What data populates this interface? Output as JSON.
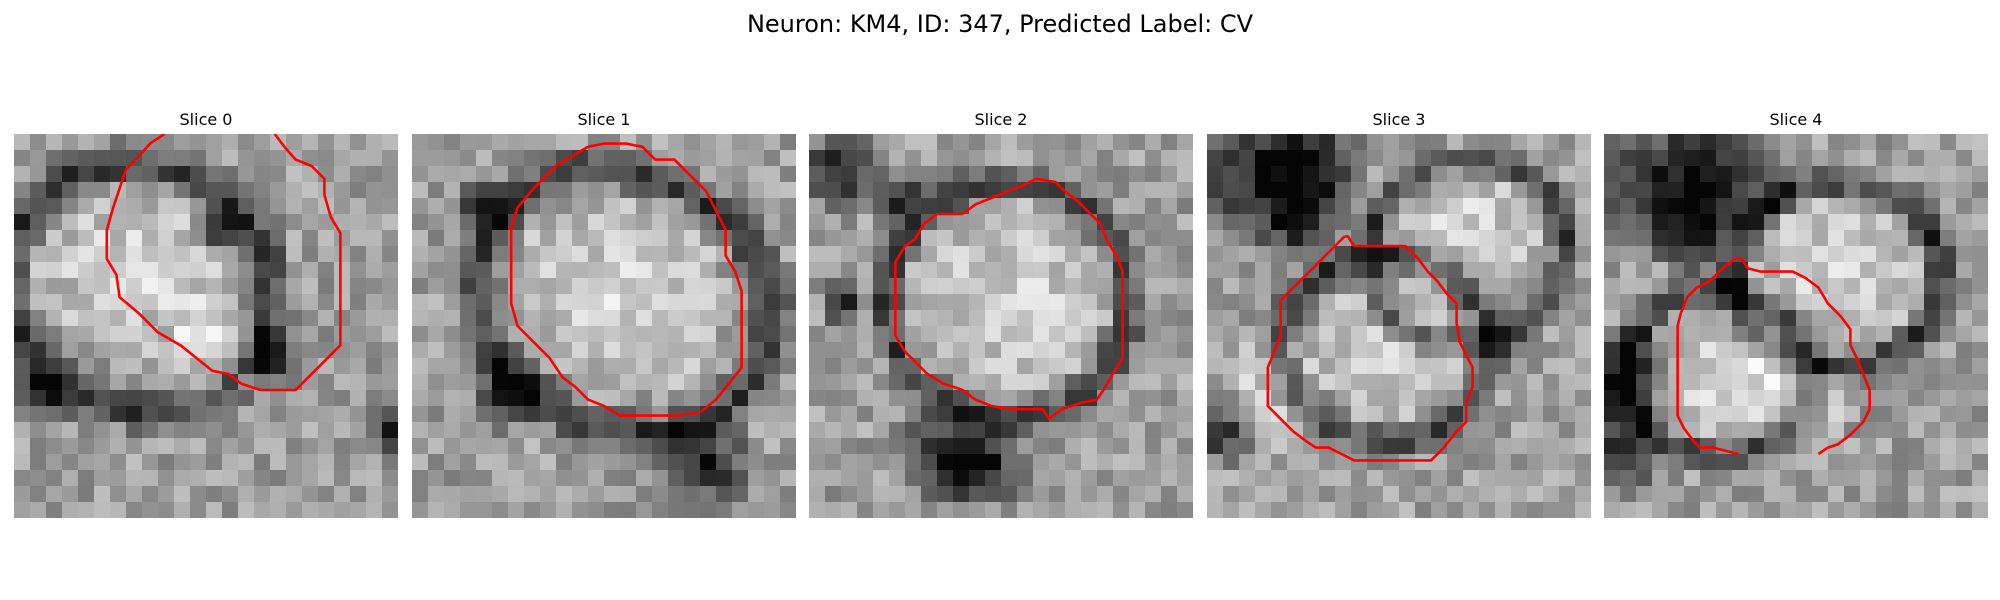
{
  "figure": {
    "title": "Neuron: KM4, ID: 347, Predicted Label: CV"
  },
  "panels": [
    {
      "title": "Slice 0",
      "contour": [
        [
          9.4,
          0
        ],
        [
          8.5,
          0.6
        ],
        [
          7.8,
          1.4
        ],
        [
          7.0,
          2.2
        ],
        [
          6.6,
          3.4
        ],
        [
          6.2,
          4.6
        ],
        [
          5.8,
          6.0
        ],
        [
          5.8,
          7.8
        ],
        [
          6.4,
          8.8
        ],
        [
          6.6,
          10.2
        ],
        [
          7.8,
          11.2
        ],
        [
          9.0,
          12.4
        ],
        [
          10.4,
          13.2
        ],
        [
          11.4,
          14.0
        ],
        [
          12.4,
          14.8
        ],
        [
          13.4,
          15.0
        ],
        [
          14.2,
          15.6
        ],
        [
          15.4,
          16.0
        ],
        [
          16.6,
          16.0
        ],
        [
          17.6,
          16.0
        ],
        [
          18.4,
          15.2
        ],
        [
          19.4,
          14.2
        ],
        [
          20.4,
          13.2
        ],
        [
          20.4,
          11.6
        ],
        [
          20.4,
          10.0
        ],
        [
          20.4,
          8.0
        ],
        [
          20.4,
          6.2
        ],
        [
          19.8,
          5.2
        ],
        [
          19.4,
          3.8
        ],
        [
          19.4,
          2.8
        ],
        [
          18.6,
          2.0
        ],
        [
          17.6,
          1.6
        ],
        [
          16.9,
          0.8
        ],
        [
          16.3,
          0
        ]
      ],
      "blobs": [
        {
          "cx": 7.6,
          "cy": 8.6,
          "rx": 6.4,
          "ry": 5.6,
          "rot": 20
        },
        {
          "cx": 12.5,
          "cy": 13.5,
          "rx": 3.0,
          "ry": 3.5,
          "rot": 0
        }
      ],
      "rings": [
        {
          "cx": 7.8,
          "cy": 9.6,
          "rx": 8.4,
          "ry": 7.6,
          "rot": 20,
          "w": 1.8
        }
      ],
      "darks": [
        {
          "cx": 16.2,
          "cy": 13.8,
          "r": 1.6
        },
        {
          "cx": 12.6,
          "cy": 6.2,
          "r": 1.2
        },
        {
          "cx": 1.6,
          "cy": 16.2,
          "r": 2.0
        },
        {
          "cx": 24.0,
          "cy": 18.5,
          "r": 1.8
        }
      ]
    },
    {
      "title": "Slice 1",
      "contour": [
        [
          9.0,
          2.0
        ],
        [
          10.0,
          1.4
        ],
        [
          11.0,
          0.8
        ],
        [
          12.0,
          0.6
        ],
        [
          13.4,
          0.6
        ],
        [
          14.4,
          0.8
        ],
        [
          15.2,
          1.6
        ],
        [
          16.4,
          1.6
        ],
        [
          17.4,
          2.6
        ],
        [
          18.4,
          3.6
        ],
        [
          19.0,
          4.8
        ],
        [
          19.6,
          6.0
        ],
        [
          19.6,
          7.6
        ],
        [
          20.2,
          8.6
        ],
        [
          20.6,
          9.8
        ],
        [
          20.6,
          11.4
        ],
        [
          20.6,
          13.0
        ],
        [
          20.6,
          14.6
        ],
        [
          19.8,
          15.6
        ],
        [
          19.0,
          16.6
        ],
        [
          18.0,
          17.4
        ],
        [
          16.6,
          17.6
        ],
        [
          15.0,
          17.6
        ],
        [
          13.0,
          17.6
        ],
        [
          12.0,
          17.0
        ],
        [
          11.0,
          16.6
        ],
        [
          10.2,
          15.8
        ],
        [
          9.4,
          15.2
        ],
        [
          8.6,
          14.0
        ],
        [
          7.6,
          13.0
        ],
        [
          6.6,
          12.0
        ],
        [
          6.2,
          10.6
        ],
        [
          6.2,
          9.0
        ],
        [
          6.2,
          7.4
        ],
        [
          6.2,
          5.8
        ],
        [
          6.6,
          4.6
        ],
        [
          7.6,
          3.4
        ],
        [
          8.4,
          2.6
        ],
        [
          9.0,
          2.0
        ]
      ],
      "blobs": [
        {
          "cx": 13.0,
          "cy": 10.2,
          "rx": 6.8,
          "ry": 6.0,
          "rot": 25
        }
      ],
      "rings": [
        {
          "cx": 13.2,
          "cy": 10.4,
          "rx": 9.4,
          "ry": 8.0,
          "rot": 25,
          "w": 1.8
        }
      ],
      "darks": [
        {
          "cx": 4.4,
          "cy": 4.2,
          "r": 1.6
        },
        {
          "cx": 6.0,
          "cy": 16.2,
          "r": 2.0
        },
        {
          "cx": 18.4,
          "cy": 20.6,
          "r": 2.6
        }
      ]
    },
    {
      "title": "Slice 2",
      "contour": [
        [
          9.6,
          5.0
        ],
        [
          10.4,
          4.4
        ],
        [
          11.4,
          4.0
        ],
        [
          12.4,
          3.6
        ],
        [
          13.4,
          3.2
        ],
        [
          14.2,
          2.8
        ],
        [
          15.4,
          3.0
        ],
        [
          16.0,
          3.6
        ],
        [
          16.8,
          4.2
        ],
        [
          17.4,
          4.8
        ],
        [
          18.2,
          5.6
        ],
        [
          18.6,
          6.6
        ],
        [
          19.2,
          7.6
        ],
        [
          19.6,
          8.6
        ],
        [
          19.6,
          9.8
        ],
        [
          19.6,
          11.2
        ],
        [
          19.6,
          12.4
        ],
        [
          19.6,
          14.0
        ],
        [
          19.0,
          15.0
        ],
        [
          18.4,
          16.0
        ],
        [
          18.0,
          16.6
        ],
        [
          17.0,
          16.8
        ],
        [
          15.8,
          17.2
        ],
        [
          15.0,
          17.8
        ],
        [
          14.6,
          17.2
        ],
        [
          13.6,
          17.2
        ],
        [
          12.6,
          17.2
        ],
        [
          11.4,
          17.0
        ],
        [
          10.4,
          16.6
        ],
        [
          9.6,
          16.0
        ],
        [
          8.4,
          15.6
        ],
        [
          7.4,
          15.0
        ],
        [
          6.6,
          14.2
        ],
        [
          6.0,
          13.6
        ],
        [
          5.4,
          12.6
        ],
        [
          5.4,
          11.4
        ],
        [
          5.4,
          10.2
        ],
        [
          5.4,
          9.0
        ],
        [
          5.4,
          8.0
        ],
        [
          6.0,
          7.0
        ],
        [
          6.6,
          6.6
        ],
        [
          7.2,
          5.6
        ],
        [
          8.0,
          5.0
        ],
        [
          9.0,
          5.0
        ],
        [
          9.6,
          5.0
        ]
      ],
      "blobs": [
        {
          "cx": 12.4,
          "cy": 10.4,
          "rx": 6.4,
          "ry": 6.4,
          "rot": 0
        }
      ],
      "rings": [
        {
          "cx": 12.4,
          "cy": 10.4,
          "rx": 7.6,
          "ry": 7.4,
          "rot": 0,
          "w": 1.4
        }
      ],
      "darks": [
        {
          "cx": 2.0,
          "cy": 2.2,
          "r": 2.4
        },
        {
          "cx": 5.6,
          "cy": 4.0,
          "r": 1.6
        },
        {
          "cx": 8.4,
          "cy": 20.0,
          "r": 2.6
        },
        {
          "cx": 11.0,
          "cy": 20.6,
          "r": 2.4
        },
        {
          "cx": 2.2,
          "cy": 10.6,
          "r": 1.2
        }
      ]
    },
    {
      "title": "Slice 3",
      "contour": [
        [
          8.6,
          6.4
        ],
        [
          8.0,
          7.0
        ],
        [
          7.4,
          7.6
        ],
        [
          6.8,
          8.2
        ],
        [
          6.2,
          8.8
        ],
        [
          5.4,
          9.6
        ],
        [
          4.6,
          10.4
        ],
        [
          4.6,
          11.4
        ],
        [
          4.6,
          12.6
        ],
        [
          4.2,
          13.6
        ],
        [
          3.8,
          14.6
        ],
        [
          3.8,
          15.8
        ],
        [
          3.8,
          17.0
        ],
        [
          4.6,
          17.8
        ],
        [
          5.4,
          18.6
        ],
        [
          6.2,
          19.2
        ],
        [
          6.8,
          19.6
        ],
        [
          7.6,
          19.6
        ],
        [
          8.4,
          20.0
        ],
        [
          9.2,
          20.4
        ],
        [
          10.4,
          20.4
        ],
        [
          11.6,
          20.4
        ],
        [
          12.8,
          20.4
        ],
        [
          14.0,
          20.4
        ],
        [
          14.8,
          19.6
        ],
        [
          15.6,
          18.6
        ],
        [
          16.2,
          18.0
        ],
        [
          16.2,
          16.8
        ],
        [
          16.6,
          15.8
        ],
        [
          16.6,
          14.6
        ],
        [
          16.2,
          13.8
        ],
        [
          15.8,
          13.0
        ],
        [
          15.6,
          11.8
        ],
        [
          15.6,
          10.6
        ],
        [
          15.0,
          10.0
        ],
        [
          14.4,
          9.2
        ],
        [
          13.8,
          8.6
        ],
        [
          13.2,
          7.8
        ],
        [
          12.4,
          7.0
        ],
        [
          11.6,
          7.0
        ],
        [
          10.8,
          7.0
        ],
        [
          9.8,
          7.0
        ],
        [
          9.2,
          7.0
        ],
        [
          8.8,
          6.4
        ],
        [
          8.6,
          6.4
        ]
      ],
      "blobs": [
        {
          "cx": 11.4,
          "cy": 13.6,
          "rx": 5.0,
          "ry": 4.6,
          "rot": 0
        },
        {
          "cx": 16.4,
          "cy": 5.8,
          "rx": 4.8,
          "ry": 4.0,
          "rot": -15
        },
        {
          "cx": 4.2,
          "cy": 16.2,
          "rx": 3.2,
          "ry": 3.6,
          "rot": 0
        }
      ],
      "rings": [
        {
          "cx": 11.2,
          "cy": 13.4,
          "rx": 6.6,
          "ry": 5.8,
          "rot": 0,
          "w": 1.4
        },
        {
          "cx": 16.2,
          "cy": 7.4,
          "rx": 6.2,
          "ry": 5.6,
          "rot": -15,
          "w": 1.3
        }
      ],
      "darks": [
        {
          "cx": 3.0,
          "cy": 2.6,
          "r": 3.6
        },
        {
          "cx": 6.6,
          "cy": 1.6,
          "r": 3.0
        },
        {
          "cx": 6.0,
          "cy": 5.6,
          "r": 2.4
        },
        {
          "cx": 0.8,
          "cy": 18.4,
          "r": 2.0
        }
      ]
    },
    {
      "title": "Slice 4",
      "contour": [
        [
          8.2,
          7.8
        ],
        [
          7.4,
          8.4
        ],
        [
          6.6,
          9.2
        ],
        [
          5.8,
          9.6
        ],
        [
          5.2,
          10.2
        ],
        [
          4.8,
          11.2
        ],
        [
          4.6,
          12.0
        ],
        [
          4.6,
          13.0
        ],
        [
          4.6,
          14.0
        ],
        [
          4.6,
          15.2
        ],
        [
          4.6,
          16.4
        ],
        [
          4.6,
          17.6
        ],
        [
          5.0,
          18.4
        ],
        [
          5.6,
          19.2
        ],
        [
          6.0,
          19.6
        ],
        [
          6.8,
          19.6
        ],
        [
          7.6,
          19.8
        ],
        [
          8.4,
          20.0
        ]
      ],
      "contour2": [
        [
          13.4,
          20.0
        ],
        [
          14.0,
          19.6
        ],
        [
          14.6,
          19.4
        ],
        [
          15.4,
          18.8
        ],
        [
          16.2,
          18.0
        ],
        [
          16.6,
          17.2
        ],
        [
          16.6,
          16.0
        ],
        [
          16.2,
          15.0
        ],
        [
          15.8,
          14.0
        ],
        [
          15.4,
          13.2
        ],
        [
          15.4,
          12.2
        ],
        [
          14.8,
          11.4
        ],
        [
          14.0,
          10.6
        ],
        [
          13.4,
          9.6
        ],
        [
          12.6,
          9.0
        ],
        [
          11.8,
          8.6
        ],
        [
          10.8,
          8.6
        ],
        [
          9.8,
          8.6
        ],
        [
          9.0,
          8.4
        ],
        [
          8.6,
          7.8
        ],
        [
          8.2,
          7.8
        ]
      ],
      "blobs": [
        {
          "cx": 14.6,
          "cy": 8.6,
          "rx": 5.4,
          "ry": 5.0,
          "rot": 0
        },
        {
          "cx": 6.8,
          "cy": 14.8,
          "rx": 4.6,
          "ry": 4.0,
          "rot": 0
        },
        {
          "cx": 11.8,
          "cy": 16.4,
          "rx": 3.4,
          "ry": 3.6,
          "rot": 0
        }
      ],
      "rings": [
        {
          "cx": 14.6,
          "cy": 8.8,
          "rx": 6.4,
          "ry": 5.8,
          "rot": 0,
          "w": 1.4
        },
        {
          "cx": 7.2,
          "cy": 15.0,
          "rx": 5.8,
          "ry": 5.2,
          "rot": 0,
          "w": 1.3
        }
      ],
      "darks": [
        {
          "cx": 3.4,
          "cy": 3.0,
          "r": 3.6
        },
        {
          "cx": 7.8,
          "cy": 2.6,
          "r": 3.2
        },
        {
          "cx": 5.6,
          "cy": 6.4,
          "r": 2.2
        },
        {
          "cx": 1.4,
          "cy": 15.0,
          "r": 2.6
        },
        {
          "cx": 1.0,
          "cy": 19.6,
          "r": 2.4
        }
      ]
    }
  ],
  "style": {
    "contour_color": "#ff0000",
    "background": "#ffffff"
  }
}
